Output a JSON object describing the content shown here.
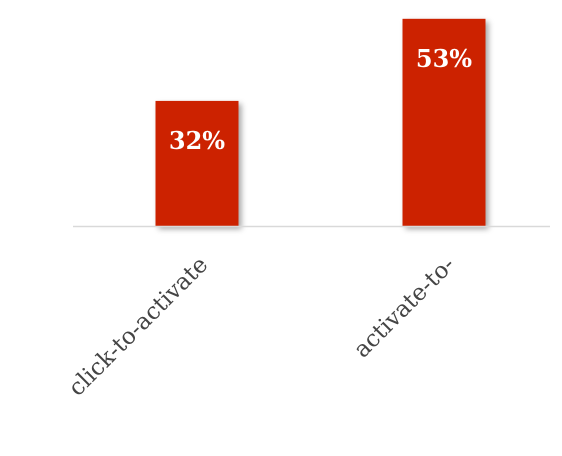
{
  "chart_data": {
    "type": "bar",
    "categories": [
      "click-to-activate",
      "activate-to-"
    ],
    "values": [
      32,
      53
    ],
    "value_labels": [
      "32%",
      "53%"
    ],
    "unit": "%",
    "ylim": [
      0,
      55
    ],
    "grid": false,
    "legend": "none",
    "colors": {
      "bar": "#cc2000",
      "axis": "#d9d9d9",
      "value_label": "#ffffff",
      "category_label": "#444444"
    }
  }
}
